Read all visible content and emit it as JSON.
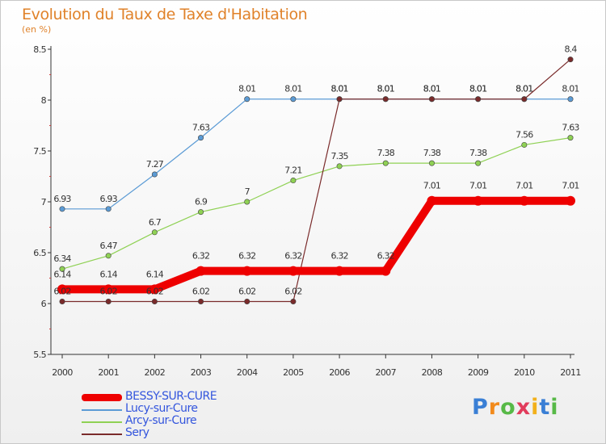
{
  "title": "Evolution du Taux de Taxe d'Habitation",
  "subtitle": "(en %)",
  "logo": {
    "text": "Proxiti",
    "colors": [
      "#3a7fd5",
      "#f28a1b",
      "#57b947",
      "#e13b5b",
      "#f2b01b",
      "#3a7fd5",
      "#57b947"
    ]
  },
  "chart_data": {
    "type": "line",
    "title": "Evolution du Taux de Taxe d'Habitation",
    "ylabel": "(en %)",
    "xlabel": "",
    "x": [
      "2000",
      "2001",
      "2002",
      "2003",
      "2004",
      "2005",
      "2006",
      "2007",
      "2008",
      "2009",
      "2010",
      "2011"
    ],
    "ylim": [
      5.5,
      8.5
    ],
    "yticks": [
      "5.5",
      "6",
      "6.5",
      "7",
      "7.5",
      "8",
      "8.5"
    ],
    "grid": false,
    "legend_position": "bottom-left",
    "series": [
      {
        "name": "BESSY-SUR-CURE",
        "color": "#ee0000",
        "values": [
          6.14,
          6.14,
          6.14,
          6.32,
          6.32,
          6.32,
          6.32,
          6.32,
          7.01,
          7.01,
          7.01,
          7.01
        ],
        "labels": [
          "6.14",
          "6.14",
          "6.14",
          "6.32",
          "6.32",
          "6.32",
          "6.32",
          "6.32",
          "7.01",
          "7.01",
          "7.01",
          "7.01"
        ]
      },
      {
        "name": "Lucy-sur-Cure",
        "color": "#5b9bd5",
        "values": [
          6.93,
          6.93,
          7.27,
          7.63,
          8.01,
          8.01,
          8.01,
          8.01,
          8.01,
          8.01,
          8.01,
          8.01
        ],
        "labels": [
          "6.93",
          "6.93",
          "7.27",
          "7.63",
          "8.01",
          "8.01",
          "8.01",
          "8.01",
          "8.01",
          "8.01",
          "8.01",
          "8.01"
        ]
      },
      {
        "name": "Arcy-sur-Cure",
        "color": "#8fd154",
        "values": [
          6.34,
          6.47,
          6.7,
          6.9,
          7,
          7.21,
          7.35,
          7.38,
          7.38,
          7.38,
          7.56,
          7.63
        ],
        "labels": [
          "6.34",
          "6.47",
          "6.7",
          "6.9",
          "7",
          "7.21",
          "7.35",
          "7.38",
          "7.38",
          "7.38",
          "7.56",
          "7.63"
        ]
      },
      {
        "name": "Sery",
        "color": "#7a2b2b",
        "values": [
          6.02,
          6.02,
          6.02,
          6.02,
          6.02,
          6.02,
          8.01,
          8.01,
          8.01,
          8.01,
          8.01,
          8.4
        ],
        "labels": [
          "6.02",
          "6.02",
          "6.02",
          "6.02",
          "6.02",
          "6.02",
          "8.01",
          "8.01",
          "8.01",
          "8.01",
          "8.01",
          "8.4"
        ]
      }
    ]
  }
}
